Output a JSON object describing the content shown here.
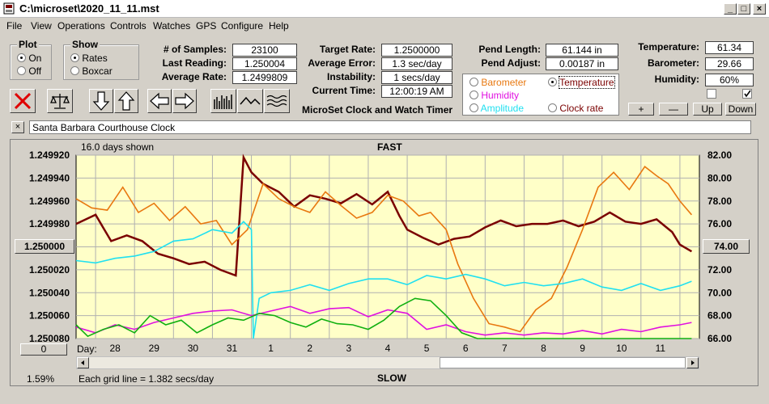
{
  "window": {
    "title": "C:\\microset\\2020_11_11.mst",
    "minimize": "_",
    "maximize": "□",
    "close": "×"
  },
  "menu": [
    "File",
    "View",
    "Operations",
    "Controls",
    "Watches",
    "GPS",
    "Configure",
    "Help"
  ],
  "plot_group": {
    "title": "Plot",
    "options": [
      "On",
      "Off"
    ],
    "selected": 0
  },
  "show_group": {
    "title": "Show",
    "options": [
      "Rates",
      "Boxcar"
    ],
    "selected": 0
  },
  "stats": {
    "samples_label": "# of Samples:",
    "samples": "23100",
    "last_label": "Last Reading:",
    "last": "1.250004",
    "avg_label": "Average Rate:",
    "avg": "1.2499809",
    "target_label": "Target Rate:",
    "target": "1.2500000",
    "error_label": "Average Error:",
    "error": "1.3 sec/day",
    "instab_label": "Instability:",
    "instab": "1 secs/day",
    "time_label": "Current Time:",
    "time": "12:00:19 AM",
    "pend_len_label": "Pend Length:",
    "pend_len": "61.144 in",
    "pend_adj_label": "Pend Adjust:",
    "pend_adj": "0.00187 in",
    "temp_label": "Temperature:",
    "temp": "61.34",
    "baro_label": "Barometer:",
    "baro": "29.66",
    "hum_label": "Humidity:",
    "hum": "60%"
  },
  "app_name": "MicroSet Clock and Watch Timer",
  "series_select": {
    "options": [
      {
        "label": "Barometer",
        "color": "#e87810",
        "selected": false
      },
      {
        "label": "Temperature",
        "color": "#7a0000",
        "selected": true
      },
      {
        "label": "Humidity",
        "color": "#e010e0",
        "selected": false
      },
      {
        "label": "Amplitude",
        "color": "#20e0f0",
        "selected": false
      },
      {
        "label": "Clock rate",
        "color": "#7a0000",
        "selected": false
      }
    ]
  },
  "small_buttons": {
    "plus": "+",
    "minus": "—",
    "up": "Up",
    "down": "Down"
  },
  "clock_name": "Santa Barbara Courthouse Clock",
  "close_x": "×",
  "chart_top": {
    "days_shown": "16.0 days shown",
    "fast": "FAST",
    "slow": "SLOW"
  },
  "zero_btn": "0",
  "footer": {
    "percent": "1.59%",
    "grid": "Each grid line = 1.382 secs/day",
    "day_label": "Day:"
  },
  "center_left": "1.250000",
  "center_right": "74.00",
  "chart_data": {
    "type": "line",
    "title": "FAST",
    "x_label": "Day:",
    "x_ticks": [
      "28",
      "29",
      "30",
      "31",
      "1",
      "2",
      "3",
      "4",
      "5",
      "6",
      "7",
      "8",
      "9",
      "10",
      "11"
    ],
    "y_left_ticks": [
      "1.249920",
      "1.249940",
      "1.249960",
      "1.249980",
      "1.250000",
      "1.250020",
      "1.250040",
      "1.250060",
      "1.250080"
    ],
    "y_left_range": [
      1.25008,
      1.24992
    ],
    "y_right_ticks": [
      "82.00",
      "80.00",
      "78.00",
      "76.00",
      "74.00",
      "72.00",
      "70.00",
      "68.00",
      "66.00"
    ],
    "y_right_range": [
      66,
      82
    ],
    "x_range": [
      27.5,
      43.5
    ],
    "series": [
      {
        "color": "#7a0000",
        "axis": "left",
        "x": [
          27.5,
          28.0,
          28.4,
          28.8,
          29.2,
          29.6,
          30.0,
          30.4,
          30.8,
          31.2,
          31.6,
          31.8,
          32.0,
          32.3,
          32.7,
          33.1,
          33.5,
          33.9,
          34.3,
          34.7,
          35.1,
          35.5,
          35.8,
          36.0,
          36.4,
          36.8,
          37.2,
          37.6,
          38.0,
          38.4,
          38.8,
          39.2,
          39.6,
          40.0,
          40.4,
          40.8,
          41.2,
          41.6,
          42.0,
          42.4,
          42.8,
          43.0,
          43.3
        ],
        "y": [
          1.24998,
          1.249972,
          1.249995,
          1.24999,
          1.249995,
          1.250006,
          1.25001,
          1.250015,
          1.250013,
          1.25002,
          1.250025,
          1.249922,
          1.249935,
          1.249945,
          1.249952,
          1.249965,
          1.249955,
          1.249958,
          1.249962,
          1.249954,
          1.249963,
          1.249952,
          1.249973,
          1.249985,
          1.249992,
          1.249998,
          1.249993,
          1.249991,
          1.249983,
          1.249977,
          1.249982,
          1.24998,
          1.24998,
          1.249977,
          1.249982,
          1.249978,
          1.24997,
          1.249978,
          1.24998,
          1.249976,
          1.249987,
          1.249998,
          1.250004
        ]
      },
      {
        "color": "#e87810",
        "axis": "left",
        "x": [
          27.5,
          27.9,
          28.3,
          28.7,
          29.1,
          29.5,
          29.9,
          30.3,
          30.7,
          31.1,
          31.5,
          31.9,
          32.3,
          32.7,
          33.1,
          33.5,
          33.9,
          34.3,
          34.7,
          35.1,
          35.5,
          35.9,
          36.3,
          36.6,
          37.0,
          37.3,
          37.7,
          38.1,
          38.5,
          38.9,
          39.3,
          39.7,
          40.1,
          40.5,
          40.9,
          41.3,
          41.7,
          42.1,
          42.4,
          42.7,
          43.0,
          43.3
        ],
        "y": [
          1.249958,
          1.249966,
          1.249968,
          1.249948,
          1.24997,
          1.249962,
          1.249977,
          1.249965,
          1.24998,
          1.249977,
          1.249998,
          1.249985,
          1.249945,
          1.249958,
          1.249965,
          1.24997,
          1.249952,
          1.249964,
          1.249975,
          1.24997,
          1.249955,
          1.24996,
          1.249973,
          1.24997,
          1.249985,
          1.250015,
          1.250045,
          1.250067,
          1.25007,
          1.250074,
          1.250055,
          1.250045,
          1.250018,
          1.249985,
          1.249948,
          1.249935,
          1.24995,
          1.24993,
          1.249938,
          1.249945,
          1.24996,
          1.249972
        ]
      },
      {
        "color": "#20e0f0",
        "axis": "left",
        "x": [
          27.5,
          28.0,
          28.5,
          29.0,
          29.5,
          30.0,
          30.5,
          31.0,
          31.5,
          31.8,
          32.0,
          32.05,
          32.2,
          32.5,
          33.0,
          33.5,
          34.0,
          34.5,
          35.0,
          35.5,
          36.0,
          36.5,
          37.0,
          37.5,
          38.0,
          38.5,
          39.0,
          39.5,
          40.0,
          40.5,
          41.0,
          41.5,
          42.0,
          42.5,
          43.0,
          43.3
        ],
        "y": [
          1.250012,
          1.250014,
          1.25001,
          1.250008,
          1.250004,
          1.249995,
          1.249993,
          1.249985,
          1.249988,
          1.249978,
          1.249985,
          1.25008,
          1.250045,
          1.25004,
          1.250038,
          1.250033,
          1.250038,
          1.250032,
          1.250028,
          1.250028,
          1.250033,
          1.250025,
          1.250028,
          1.250024,
          1.250028,
          1.250034,
          1.250031,
          1.250034,
          1.250032,
          1.250028,
          1.250035,
          1.250038,
          1.250032,
          1.250038,
          1.250034,
          1.25003
        ]
      },
      {
        "color": "#e010e0",
        "axis": "left",
        "x": [
          27.5,
          28.0,
          28.5,
          29.0,
          29.5,
          30.0,
          30.5,
          31.0,
          31.5,
          32.0,
          32.5,
          33.0,
          33.5,
          34.0,
          34.5,
          35.0,
          35.5,
          36.0,
          36.5,
          37.0,
          37.5,
          38.0,
          38.5,
          39.0,
          39.5,
          40.0,
          40.5,
          41.0,
          41.5,
          42.0,
          42.5,
          43.0,
          43.3
        ],
        "y": [
          1.25007,
          1.250075,
          1.250068,
          1.250072,
          1.250066,
          1.250062,
          1.250058,
          1.250056,
          1.250055,
          1.25006,
          1.250056,
          1.250052,
          1.250058,
          1.250054,
          1.250053,
          1.250061,
          1.250055,
          1.250058,
          1.250072,
          1.250068,
          1.250074,
          1.250077,
          1.250075,
          1.250077,
          1.250075,
          1.250076,
          1.250073,
          1.250076,
          1.250072,
          1.250074,
          1.25007,
          1.250068,
          1.250066
        ]
      },
      {
        "color": "#10b010",
        "axis": "left",
        "x": [
          27.5,
          27.8,
          28.2,
          28.6,
          29.0,
          29.4,
          29.8,
          30.2,
          30.6,
          31.0,
          31.4,
          31.8,
          32.2,
          32.6,
          33.0,
          33.4,
          33.8,
          34.2,
          34.6,
          35.0,
          35.4,
          35.8,
          36.2,
          36.6,
          37.0,
          37.4,
          37.8,
          38.2,
          38.6,
          39.0,
          39.5,
          40.0,
          40.5,
          41.0,
          41.5,
          42.0,
          42.5,
          43.0,
          43.3
        ],
        "y": [
          1.250068,
          1.250078,
          1.250072,
          1.250068,
          1.250075,
          1.25006,
          1.250068,
          1.250064,
          1.250075,
          1.250068,
          1.250062,
          1.250064,
          1.250058,
          1.25006,
          1.250066,
          1.25007,
          1.250063,
          1.250067,
          1.250068,
          1.250072,
          1.250064,
          1.250052,
          1.250045,
          1.250047,
          1.25006,
          1.250075,
          1.25008,
          1.25008,
          1.25008,
          1.25008,
          1.25008,
          1.25008,
          1.25008,
          1.25008,
          1.25008,
          1.25008,
          1.25008,
          1.25008,
          1.25008
        ]
      }
    ]
  }
}
